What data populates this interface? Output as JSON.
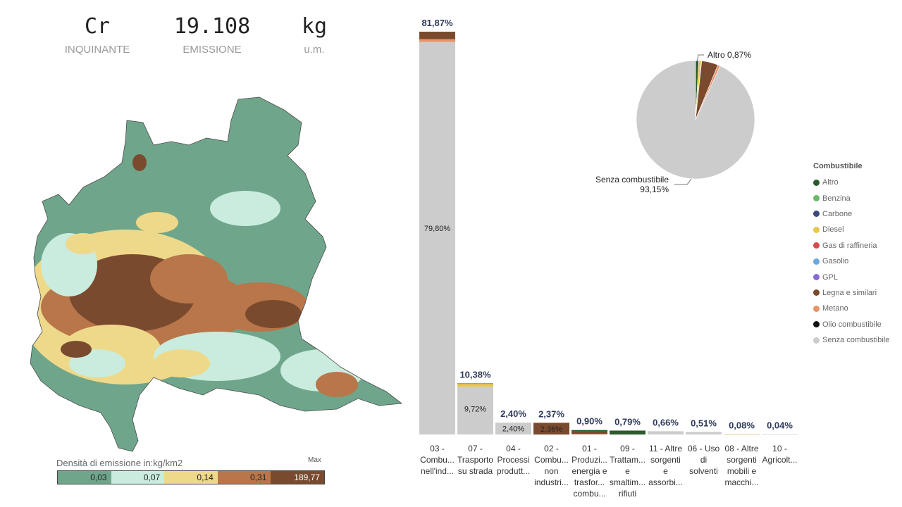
{
  "kpis": [
    {
      "value": "Cr",
      "label": "INQUINANTE"
    },
    {
      "value": "19.108",
      "label": "EMISSIONE"
    },
    {
      "value": "kg",
      "label": "u.m."
    }
  ],
  "map_legend": {
    "title": "Densità di emissione in:kg/km2",
    "max_label": "Max",
    "segments": [
      {
        "value": "0,03",
        "color": "#6fa68b"
      },
      {
        "value": "0,07",
        "color": "#c9ecde"
      },
      {
        "value": "0,14",
        "color": "#eed98a"
      },
      {
        "value": "0,31",
        "color": "#b8764a"
      },
      {
        "value": "189,77",
        "color": "#7a4a2e"
      }
    ]
  },
  "chart_data": [
    {
      "type": "bar",
      "stacked": true,
      "categories": [
        [
          "03 -",
          "Combu...",
          "nell'ind..."
        ],
        [
          "07 -",
          "Trasporto",
          "su strada"
        ],
        [
          "04 -",
          "Processi",
          "produtt..."
        ],
        [
          "02 -",
          "Combu...",
          "non",
          "industri..."
        ],
        [
          "01 -",
          "Produzi...",
          "energia e",
          "trasfor...",
          "combu..."
        ],
        [
          "09 -",
          "Trattam...",
          "e",
          "smaltim...",
          "rifiuti"
        ],
        [
          "11 - Altre",
          "sorgenti",
          "e",
          "assorbi..."
        ],
        [
          "06 - Uso",
          "di",
          "solventi"
        ],
        [
          "08 - Altre",
          "sorgenti",
          "mobili e",
          "macchi..."
        ],
        [
          "10 -",
          "Agricolt..."
        ]
      ],
      "totals": [
        81.87,
        10.38,
        2.4,
        2.37,
        0.9,
        0.79,
        0.66,
        0.51,
        0.08,
        0.04
      ],
      "total_labels": [
        "81,87%",
        "10,38%",
        "2,40%",
        "2,37%",
        "0,90%",
        "0,79%",
        "0,66%",
        "0,51%",
        "0,08%",
        "0,04%"
      ],
      "inner_labels": [
        "79,80%",
        "9,72%",
        "2,40%",
        "2,36%",
        "",
        "",
        "",
        "",
        "",
        ""
      ],
      "series": [
        {
          "name": "Senza combustibile",
          "color": "#cccccc",
          "values": [
            79.8,
            9.72,
            2.4,
            0.01,
            0.05,
            0.01,
            0.66,
            0.51,
            0.04,
            0.04
          ]
        },
        {
          "name": "Diesel",
          "color": "#e8c84a",
          "values": [
            0,
            0.6,
            0,
            0,
            0,
            0,
            0,
            0,
            0.04,
            0
          ]
        },
        {
          "name": "Metano",
          "color": "#e8956a",
          "values": [
            0.55,
            0.03,
            0,
            0,
            0.05,
            0,
            0,
            0,
            0,
            0
          ]
        },
        {
          "name": "Legna e similari",
          "color": "#7a4a2e",
          "values": [
            1.52,
            0,
            0,
            2.36,
            0.55,
            0,
            0,
            0,
            0,
            0
          ]
        },
        {
          "name": "Altro",
          "color": "#2d5a2d",
          "values": [
            0,
            0.03,
            0,
            0,
            0.25,
            0.78,
            0,
            0,
            0,
            0
          ]
        }
      ],
      "ylim": [
        0,
        81.87
      ]
    },
    {
      "type": "pie",
      "labels": [
        "Altro",
        "Diesel",
        "Benzina",
        "Legna e similari",
        "Metano",
        "Senza combustibile"
      ],
      "values": [
        0.87,
        0.7,
        0.1,
        4.5,
        0.68,
        93.15
      ],
      "colors": [
        "#2d5a2d",
        "#e8c84a",
        "#6ab86a",
        "#7a4a2e",
        "#e8956a",
        "#cccccc"
      ],
      "data_labels": [
        {
          "name": "Altro",
          "pct": "0,87%"
        },
        {
          "name": "Senza combustibile",
          "pct": "93,15%"
        }
      ],
      "legend": {
        "title": "Combustibile",
        "items": [
          {
            "label": "Altro",
            "color": "#2d5a2d"
          },
          {
            "label": "Benzina",
            "color": "#6ab86a"
          },
          {
            "label": "Carbone",
            "color": "#3a4a7a"
          },
          {
            "label": "Diesel",
            "color": "#e8c84a"
          },
          {
            "label": "Gas di raffineria",
            "color": "#d94a4a"
          },
          {
            "label": "Gasolio",
            "color": "#6aa8e0"
          },
          {
            "label": "GPL",
            "color": "#8a6ad9"
          },
          {
            "label": "Legna e similari",
            "color": "#7a4a2e"
          },
          {
            "label": "Metano",
            "color": "#e8956a"
          },
          {
            "label": "Olio combustibile",
            "color": "#111111"
          },
          {
            "label": "Senza combustibile",
            "color": "#cccccc"
          }
        ]
      }
    }
  ]
}
